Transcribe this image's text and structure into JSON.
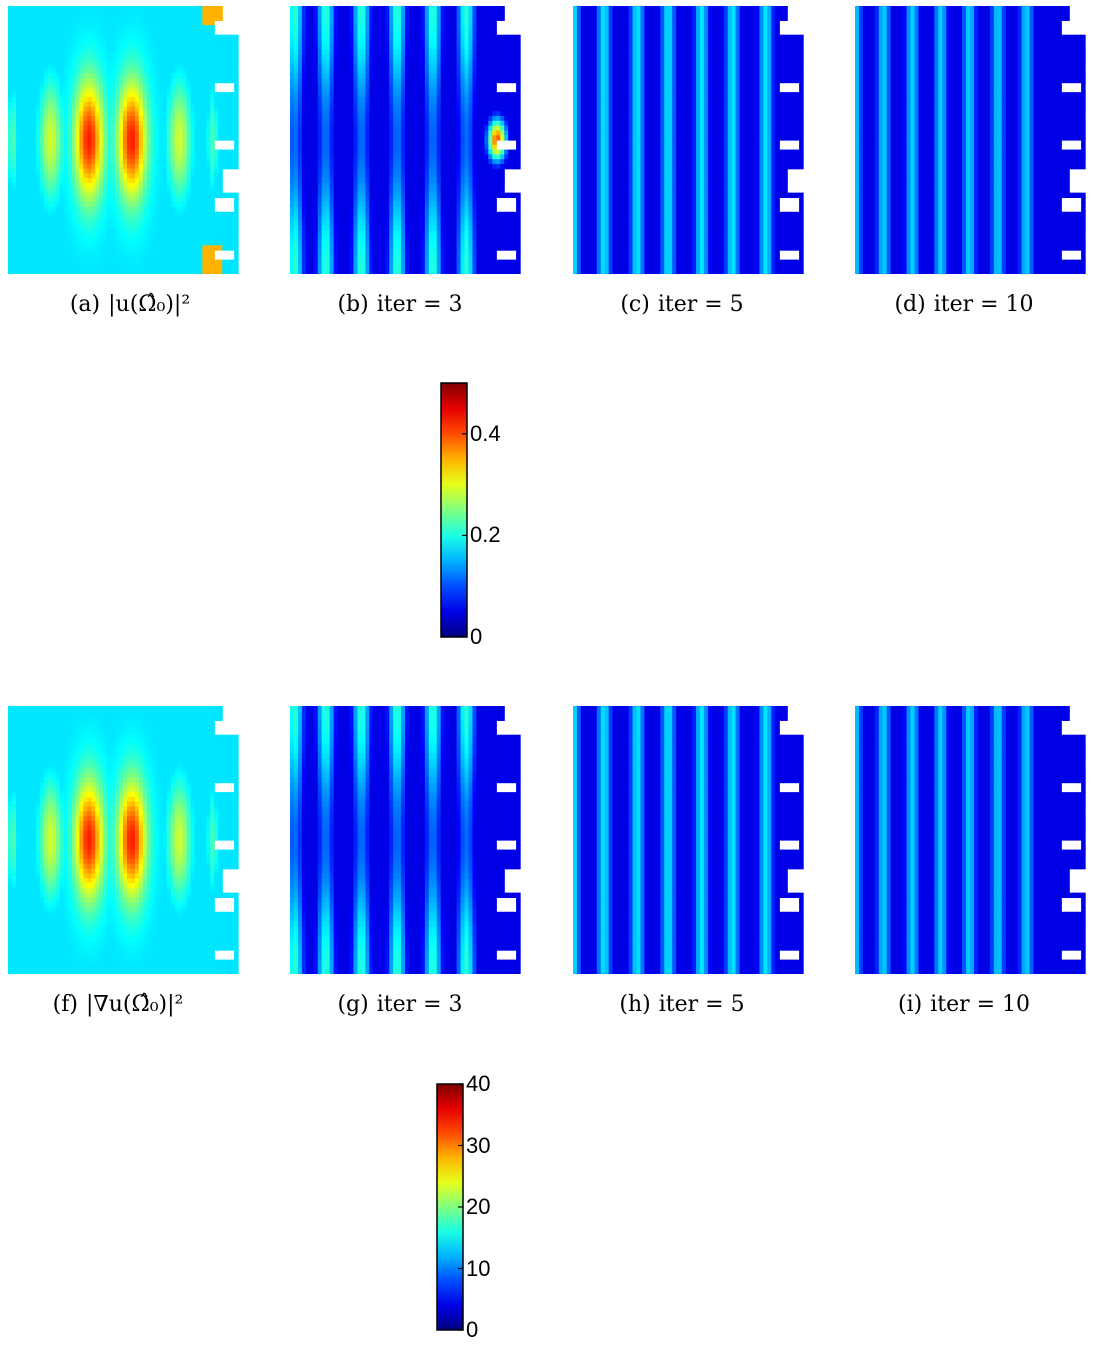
{
  "chart_data": [
    {
      "type": "heatmap",
      "title": "",
      "row": "top",
      "panels": [
        {
          "tag": "(a)",
          "label": "|u(Ω̂₀)|²",
          "pattern": "initial"
        },
        {
          "tag": "(b)",
          "label": "iter = 3",
          "pattern": "iter3"
        },
        {
          "tag": "(c)",
          "label": "iter = 5",
          "pattern": "iter5"
        },
        {
          "tag": "(d)",
          "label": "iter = 10",
          "pattern": "iter10"
        }
      ],
      "colorbar": {
        "min": 0,
        "max": 0.5,
        "ticks": [
          "0",
          "0.2",
          "0.4"
        ],
        "tick_values": [
          0,
          0.2,
          0.4
        ],
        "colormap": "jet"
      }
    },
    {
      "type": "heatmap",
      "title": "",
      "row": "bottom",
      "panels": [
        {
          "tag": "(f)",
          "label": "|∇u(Ω̂₀)|²",
          "pattern": "initial"
        },
        {
          "tag": "(g)",
          "label": "iter = 3",
          "pattern": "iter3"
        },
        {
          "tag": "(h)",
          "label": "iter = 5",
          "pattern": "iter5"
        },
        {
          "tag": "(i)",
          "label": "iter = 10",
          "pattern": "iter10"
        }
      ],
      "colorbar": {
        "min": 0,
        "max": 40,
        "ticks": [
          "0",
          "10",
          "20",
          "30",
          "40"
        ],
        "tick_values": [
          0,
          10,
          20,
          30,
          40
        ],
        "colormap": "jet"
      }
    }
  ]
}
